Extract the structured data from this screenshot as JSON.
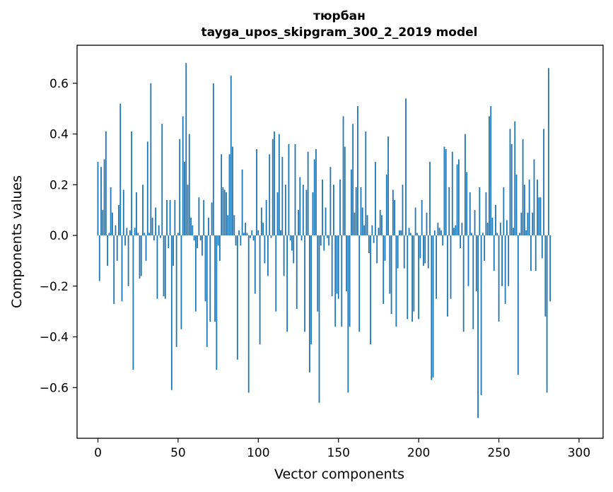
{
  "chart_data": {
    "type": "bar",
    "title_lines": [
      "тюрбан",
      "tayga_upos_skipgram_300_2_2019 model"
    ],
    "xlabel": "Vector components",
    "ylabel": "Components values",
    "xlim": [
      -13,
      315
    ],
    "ylim": [
      -0.8,
      0.75
    ],
    "xticks": [
      0,
      50,
      100,
      150,
      200,
      250,
      300
    ],
    "yticks": [
      -0.6,
      -0.4,
      -0.2,
      0.0,
      0.2,
      0.4,
      0.6
    ],
    "ytick_labels": [
      "−0.6",
      "−0.4",
      "−0.2",
      "0.0",
      "0.2",
      "0.4",
      "0.6"
    ],
    "bar_color": "#1f77b4",
    "grid": false,
    "values": [
      0.29,
      -0.18,
      0.27,
      0.1,
      0.3,
      0.41,
      -0.12,
      0.01,
      0.19,
      0.09,
      -0.27,
      0.04,
      -0.1,
      0.12,
      0.52,
      -0.26,
      0.18,
      -0.04,
      0.03,
      -0.2,
      0.02,
      0.41,
      -0.53,
      0.03,
      0.17,
      0.01,
      -0.17,
      -0.16,
      0.2,
      0.01,
      -0.1,
      0.37,
      0.01,
      0.6,
      0.07,
      -0.02,
      0.11,
      -0.25,
      0.04,
      -0.01,
      0.44,
      -0.24,
      -0.25,
      0.14,
      -0.05,
      0.14,
      -0.61,
      -0.12,
      0.14,
      -0.44,
      0.01,
      0.38,
      -0.37,
      0.47,
      0.29,
      0.68,
      0.2,
      0.4,
      0.07,
      0.04,
      -0.02,
      -0.3,
      -0.05,
      0.15,
      -0.02,
      -0.08,
      0.14,
      -0.26,
      -0.44,
      0.07,
      -0.34,
      0.13,
      0.6,
      -0.34,
      -0.53,
      -0.04,
      -0.1,
      0.32,
      0.19,
      0.18,
      0.17,
      0.08,
      0.32,
      0.63,
      0.35,
      0.08,
      -0.04,
      -0.49,
      0.02,
      -0.04,
      0.26,
      0.01,
      0.05,
      0.01,
      -0.62,
      -0.01,
      0.02,
      -0.02,
      -0.23,
      0.34,
      0.02,
      -0.43,
      0.11,
      0.05,
      -0.11,
      0.14,
      -0.16,
      0.32,
      -0.01,
      0.38,
      0.41,
      -0.3,
      0.17,
      0.4,
      0.02,
      0.31,
      -0.16,
      0.2,
      -0.38,
      0.36,
      -0.02,
      -0.06,
      -0.11,
      0.36,
      -0.29,
      0.1,
      0.23,
      -0.02,
      0.2,
      -0.38,
      0.18,
      0.33,
      -0.54,
      -0.43,
      0.17,
      0.3,
      0.34,
      -0.3,
      -0.66,
      -0.04,
      0.22,
      -0.06,
      0.11,
      -0.01,
      -0.04,
      0.27,
      -0.24,
      0.2,
      -0.36,
      -0.23,
      -0.25,
      0.22,
      -0.36,
      0.47,
      0.35,
      -0.22,
      -0.62,
      -0.36,
      0.26,
      0.44,
      0.09,
      0.19,
      0.51,
      -0.38,
      0.19,
      0.11,
      0.04,
      0.41,
      0.08,
      -0.07,
      -0.43,
      0.04,
      -0.03,
      0.29,
      -0.11,
      0.03,
      0.1,
      0.08,
      -0.27,
      -0.1,
      0.24,
      0.39,
      -0.23,
      -0.31,
      0.18,
      0.14,
      -0.36,
      -0.13,
      0.02,
      0.02,
      0.2,
      -0.13,
      0.54,
      -0.33,
      0.03,
      0.01,
      -0.34,
      -0.3,
      0.11,
      0.01,
      -0.33,
      -0.09,
      0.14,
      -0.12,
      -0.11,
      0.09,
      -0.13,
      0.29,
      -0.57,
      -0.56,
      0.02,
      -0.25,
      0.05,
      0.03,
      0.02,
      -0.04,
      0.35,
      0.34,
      -0.32,
      0.19,
      -0.25,
      0.33,
      0.03,
      0.04,
      0.28,
      0.3,
      -0.05,
      0.05,
      -0.38,
      0.4,
      0.25,
      -0.2,
      0.17,
      0.01,
      -0.37,
      0.1,
      -0.22,
      -0.72,
      0.19,
      -0.63,
      0.01,
      -0.1,
      0.17,
      0.05,
      0.47,
      0.51,
      0.07,
      -0.14,
      0.12,
      0.01,
      -0.34,
      0.05,
      -0.2,
      0.19,
      -0.27,
      0.06,
      -0.2,
      0.42,
      0.36,
      0.03,
      0.45,
      0.24,
      -0.55,
      0.01,
      0.09,
      0.38,
      0.2,
      0.02,
      0.09,
      0.22,
      -0.14,
      0.09,
      0.3,
      -0.14,
      0.22,
      0.15,
      0.15,
      -0.09,
      0.42,
      -0.32,
      -0.62,
      0.66,
      -0.26
    ]
  }
}
